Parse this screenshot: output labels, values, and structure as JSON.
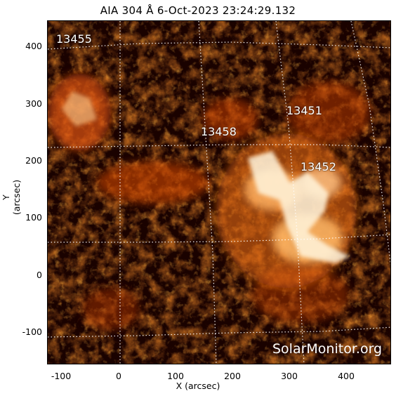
{
  "title": "AIA 304 Å  6-Oct-2023 23:24:29.132",
  "axes": {
    "xlabel": "X (arcsec)",
    "ylabel": "Y (arcsec)",
    "x_ticks": [
      "-100",
      "0",
      "100",
      "200",
      "300",
      "400"
    ],
    "y_ticks": [
      "-100",
      "0",
      "100",
      "200",
      "300",
      "400"
    ]
  },
  "active_regions": [
    "13455",
    "13451",
    "13458",
    "13452"
  ],
  "watermark": "SolarMonitor.org",
  "colors": {
    "background": "#120000",
    "emission": "#ff6a00",
    "bright": "#ffffff",
    "grid": "#ffffff"
  }
}
